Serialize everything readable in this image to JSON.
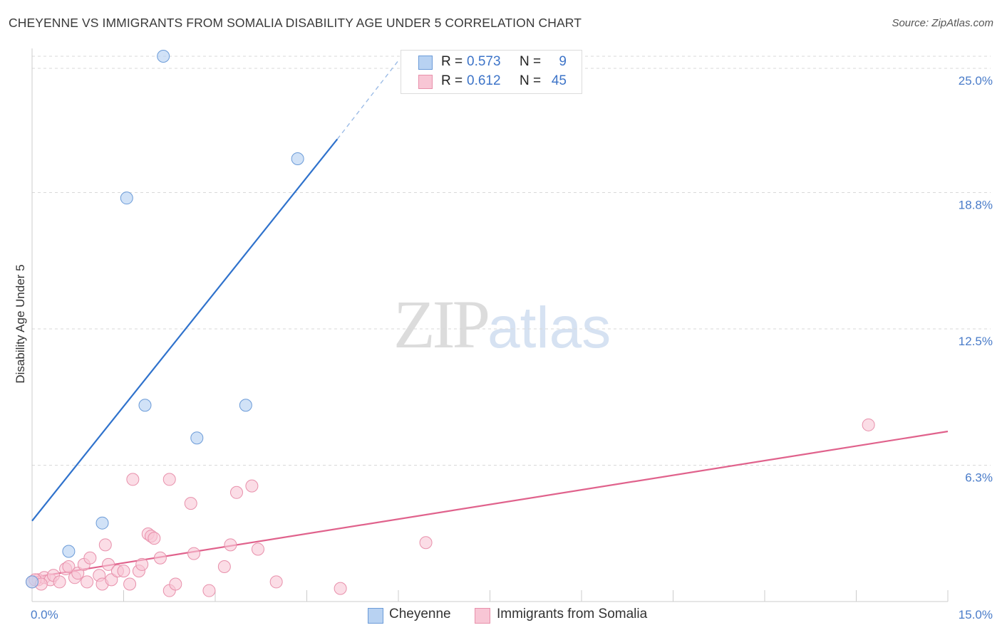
{
  "header": {
    "title": "CHEYENNE VS IMMIGRANTS FROM SOMALIA DISABILITY AGE UNDER 5 CORRELATION CHART",
    "source": "Source: ZipAtlas.com"
  },
  "watermark": {
    "zip": "ZIP",
    "atlas": "atlas"
  },
  "legend": {
    "rows": [
      {
        "r_label": "R =",
        "r_value": "0.573",
        "n_label": "N =",
        "n_value": "9"
      },
      {
        "r_label": "R =",
        "r_value": "0.612",
        "n_label": "N =",
        "n_value": "45"
      }
    ]
  },
  "bottom_legend": {
    "items": [
      "Cheyenne",
      "Immigrants from Somalia"
    ]
  },
  "colors": {
    "cheyenne_fill": "#b8d2f2",
    "cheyenne_stroke": "#6b9bd8",
    "cheyenne_line": "#2f72cc",
    "somalia_fill": "#f8c6d5",
    "somalia_stroke": "#e890ab",
    "somalia_line": "#e0628c",
    "grid": "#d8d8d8",
    "tick_text": "#4a7cc9"
  },
  "chart_data": {
    "type": "scatter",
    "title": "CHEYENNE VS IMMIGRANTS FROM SOMALIA DISABILITY AGE UNDER 5 CORRELATION CHART",
    "xlabel": "",
    "ylabel": "Disability Age Under 5",
    "xlim": [
      0,
      15
    ],
    "ylim": [
      0,
      25
    ],
    "x_tick_labels": [
      "0.0%",
      "15.0%"
    ],
    "y_ticks": [
      6.25,
      12.5,
      18.75,
      25.0
    ],
    "y_tick_labels": [
      "6.3%",
      "12.5%",
      "18.8%",
      "25.0%"
    ],
    "series": [
      {
        "name": "Cheyenne",
        "R": 0.573,
        "N": 9,
        "points": [
          [
            0.0,
            0.9
          ],
          [
            0.6,
            2.3
          ],
          [
            1.15,
            3.6
          ],
          [
            1.55,
            18.5
          ],
          [
            2.15,
            25.0
          ],
          [
            1.85,
            9.0
          ],
          [
            2.7,
            7.5
          ],
          [
            3.5,
            9.0
          ],
          [
            4.35,
            20.3
          ]
        ],
        "trend_solid": [
          [
            0.0,
            3.7
          ],
          [
            5.0,
            21.2
          ]
        ],
        "trend_dashed": [
          [
            5.0,
            21.2
          ],
          [
            6.0,
            24.8
          ]
        ]
      },
      {
        "name": "Immigrants from Somalia",
        "R": 0.612,
        "N": 45,
        "points": [
          [
            0.0,
            0.9
          ],
          [
            0.1,
            1.0
          ],
          [
            0.2,
            1.1
          ],
          [
            0.3,
            1.0
          ],
          [
            0.35,
            1.2
          ],
          [
            0.45,
            0.9
          ],
          [
            0.55,
            1.5
          ],
          [
            0.6,
            1.6
          ],
          [
            0.7,
            1.1
          ],
          [
            0.75,
            1.3
          ],
          [
            0.85,
            1.7
          ],
          [
            0.9,
            0.9
          ],
          [
            0.95,
            2.0
          ],
          [
            1.1,
            1.2
          ],
          [
            1.15,
            0.8
          ],
          [
            1.2,
            2.6
          ],
          [
            1.25,
            1.7
          ],
          [
            1.3,
            1.0
          ],
          [
            1.4,
            1.4
          ],
          [
            1.5,
            1.4
          ],
          [
            1.6,
            0.8
          ],
          [
            1.65,
            5.6
          ],
          [
            1.75,
            1.4
          ],
          [
            1.8,
            1.7
          ],
          [
            1.9,
            3.1
          ],
          [
            1.95,
            3.0
          ],
          [
            2.0,
            2.9
          ],
          [
            2.1,
            2.0
          ],
          [
            2.25,
            0.5
          ],
          [
            2.35,
            0.8
          ],
          [
            2.25,
            5.6
          ],
          [
            2.6,
            4.5
          ],
          [
            2.65,
            2.2
          ],
          [
            2.9,
            0.5
          ],
          [
            3.15,
            1.6
          ],
          [
            3.25,
            2.6
          ],
          [
            3.35,
            5.0
          ],
          [
            3.6,
            5.3
          ],
          [
            3.7,
            2.4
          ],
          [
            4.0,
            0.9
          ],
          [
            5.05,
            0.6
          ],
          [
            6.45,
            2.7
          ],
          [
            13.7,
            8.1
          ],
          [
            0.05,
            1.0
          ],
          [
            0.15,
            0.8
          ]
        ],
        "trend": [
          [
            0.0,
            1.1
          ],
          [
            15.0,
            7.8
          ]
        ]
      }
    ]
  }
}
